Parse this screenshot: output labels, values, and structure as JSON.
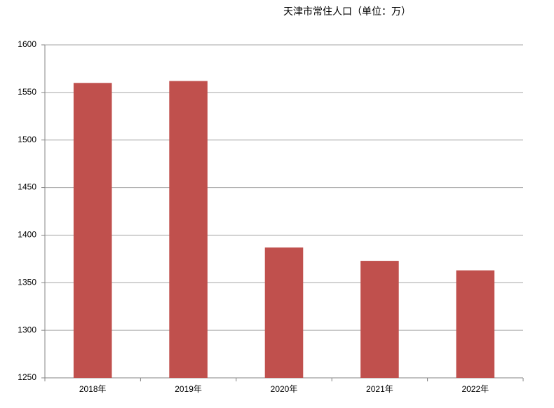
{
  "chart_data": {
    "type": "bar",
    "title": "天津市常住人口（单位：万）",
    "categories": [
      "2018年",
      "2019年",
      "2020年",
      "2021年",
      "2022年"
    ],
    "values": [
      1560,
      1562,
      1387,
      1373,
      1363
    ],
    "color": "#c0504d",
    "ylim": [
      1250,
      1600
    ],
    "yticks": [
      1250,
      1300,
      1350,
      1400,
      1450,
      1500,
      1550,
      1600
    ],
    "grid": true
  }
}
